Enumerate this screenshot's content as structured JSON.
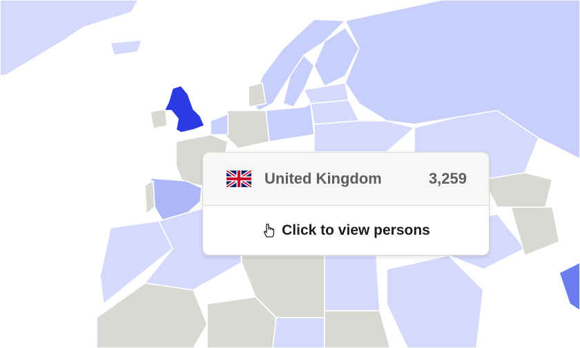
{
  "map": {
    "colors": {
      "water": "#ffffff",
      "no_data": "#d9d9d4",
      "low": "#d5d9fb",
      "mid_low": "#c8cffb",
      "mid": "#aeb7f5",
      "high": "#6b7ef0",
      "selected": "#2b3be3"
    },
    "selected_country": "United Kingdom"
  },
  "tooltip": {
    "flag_icon": "uk-flag-icon",
    "country": "United Kingdom",
    "count": "3,259",
    "action_icon": "pointer-hand-icon",
    "action_label": "Click to view persons"
  }
}
